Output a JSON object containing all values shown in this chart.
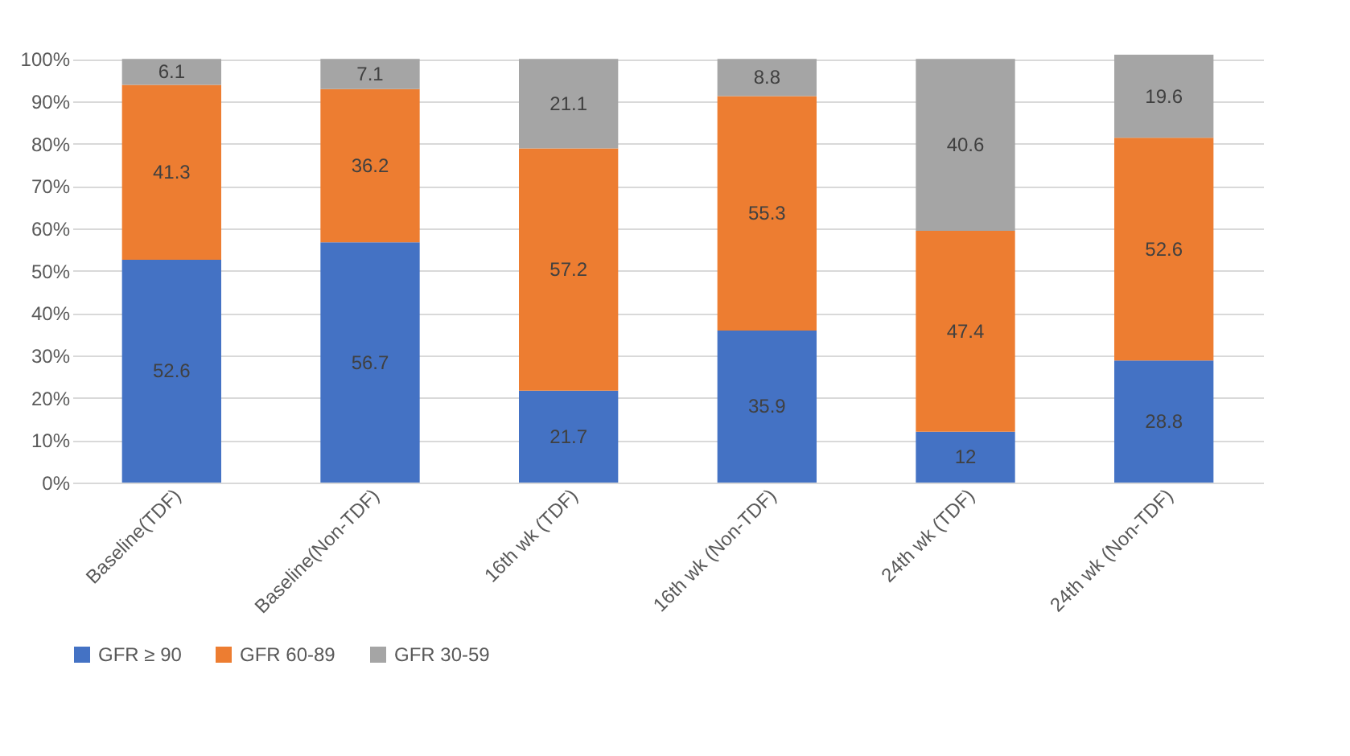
{
  "chart_data": {
    "type": "bar",
    "stacked": true,
    "data_labels": true,
    "grid": "y",
    "legend": "bottom",
    "categories": [
      "Baseline(TDF)",
      "Baseline(Non-TDF)",
      "16th wk (TDF)",
      "16th wk (Non-TDF)",
      "24th wk (TDF)",
      "24th wk (Non-TDF)"
    ],
    "series": [
      {
        "name": "GFR ≥ 90",
        "color": "#4472c4",
        "values": [
          52.6,
          56.7,
          21.7,
          35.9,
          12,
          28.8
        ]
      },
      {
        "name": "GFR 60-89",
        "color": "#ed7d31",
        "values": [
          41.3,
          36.2,
          57.2,
          55.3,
          47.4,
          52.6
        ]
      },
      {
        "name": "GFR 30-59",
        "color": "#a5a5a5",
        "values": [
          6.1,
          7.1,
          21.1,
          8.8,
          40.6,
          19.6
        ]
      }
    ],
    "ylim": [
      0,
      101
    ],
    "yticks": [
      {
        "value": 0,
        "label": "0%"
      },
      {
        "value": 10,
        "label": "10%"
      },
      {
        "value": 20,
        "label": "20%"
      },
      {
        "value": 30,
        "label": "30%"
      },
      {
        "value": 40,
        "label": "40%"
      },
      {
        "value": 50,
        "label": "50%"
      },
      {
        "value": 60,
        "label": "60%"
      },
      {
        "value": 70,
        "label": "70%"
      },
      {
        "value": 80,
        "label": "80%"
      },
      {
        "value": 90,
        "label": "90%"
      },
      {
        "value": 100,
        "label": "100%"
      }
    ]
  }
}
